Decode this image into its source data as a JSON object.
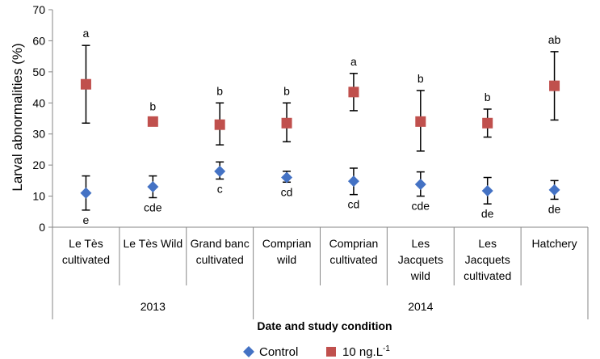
{
  "chart_data": {
    "type": "scatter",
    "ylabel": "Larval abnormalities (%)",
    "xlabel": "Date and study condition",
    "ylim": [
      0,
      70
    ],
    "yticks": [
      0,
      10,
      20,
      30,
      40,
      50,
      60,
      70
    ],
    "categories": [
      [
        "Le Tès",
        "cultivated"
      ],
      [
        "Le Tès Wild"
      ],
      [
        "Grand banc",
        "cultivated"
      ],
      [
        "Comprian",
        "wild"
      ],
      [
        "Comprian",
        "cultivated"
      ],
      [
        "Les",
        "Jacquets",
        "wild"
      ],
      [
        "Les",
        "Jacquets",
        "cultivated"
      ],
      [
        "Hatchery"
      ]
    ],
    "years": [
      {
        "label": "2013",
        "from": 0,
        "to": 3
      },
      {
        "label": "2014",
        "from": 3,
        "to": 8
      }
    ],
    "series": [
      {
        "name": "Control",
        "color": "#4472C4",
        "marker": "diamond",
        "values": [
          11,
          13,
          18,
          16,
          14.8,
          13.8,
          11.7,
          12
        ],
        "err_low": [
          5.5,
          9.5,
          15.5,
          14.5,
          10.5,
          10,
          7.5,
          9
        ],
        "err_high": [
          16.5,
          16.5,
          21,
          18,
          19,
          17.8,
          16,
          15
        ],
        "letters": [
          "e",
          "cde",
          "c",
          "cd",
          "cd",
          "cde",
          "de",
          "de"
        ]
      },
      {
        "name": "10 ng.L",
        "name_sup": "-1",
        "color": "#C0504D",
        "marker": "square",
        "values": [
          46,
          34,
          33,
          33.5,
          43.5,
          34,
          33.5,
          45.5
        ],
        "err_low": [
          33.5,
          33,
          26.5,
          27.5,
          37.5,
          24.5,
          29,
          34.5
        ],
        "err_high": [
          58.5,
          35,
          40,
          40,
          49.5,
          44,
          38,
          56.5
        ],
        "letters": [
          "a",
          "b",
          "b",
          "b",
          "a",
          "b",
          "b",
          "ab"
        ]
      }
    ],
    "legend_position": "bottom"
  }
}
